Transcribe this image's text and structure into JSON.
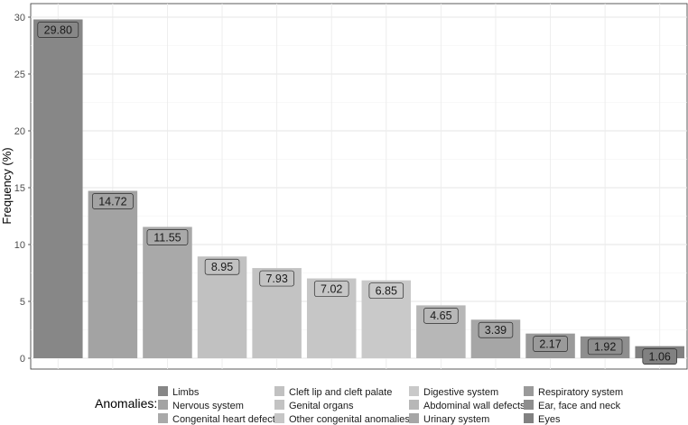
{
  "chart_data": {
    "type": "bar",
    "title": "",
    "xlabel": "",
    "ylabel": "Frequency (%)",
    "ylim": [
      0,
      30.5
    ],
    "yticks": [
      0,
      5,
      10,
      15,
      20,
      25,
      30
    ],
    "grid": true,
    "legend_title": "Anomalies:",
    "legend_position": "bottom",
    "categories": [
      "Limbs",
      "Nervous system",
      "Congenital heart defect",
      "Cleft lip and cleft palate",
      "Genital organs",
      "Other congenital anomalies",
      "Digestive system",
      "Abdominal wall defects",
      "Urinary system",
      "Respiratory system",
      "Ear, face and neck",
      "Eyes"
    ],
    "values": [
      29.8,
      14.72,
      11.55,
      8.95,
      7.93,
      7.02,
      6.85,
      4.65,
      3.39,
      2.17,
      1.92,
      1.06
    ],
    "value_labels": [
      "29.80",
      "14.72",
      "11.55",
      "8.95",
      "7.93",
      "7.02",
      "6.85",
      "4.65",
      "3.39",
      "2.17",
      "1.92",
      "1.06"
    ],
    "colors": [
      "#878787",
      "#a3a3a3",
      "#a9a9a9",
      "#c1c1c1",
      "#c3c3c3",
      "#c6c6c6",
      "#c9c9c9",
      "#b7b7b7",
      "#a6a6a6",
      "#9a9a9a",
      "#8e8e8e",
      "#818181"
    ]
  }
}
